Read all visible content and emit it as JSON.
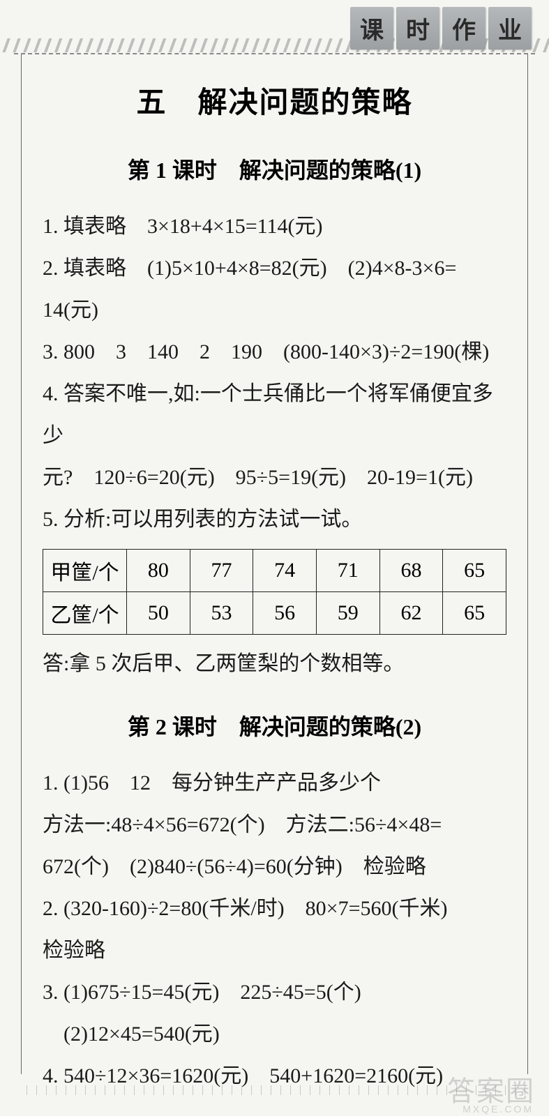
{
  "header": {
    "tabs": [
      "课",
      "时",
      "作",
      "业"
    ]
  },
  "main_title": "五　解决问题的策略",
  "lesson1": {
    "title": "第 1 课时　解决问题的策略(1)",
    "lines": [
      "1. 填表略　3×18+4×15=114(元)",
      "2. 填表略　(1)5×10+4×8=82(元)　(2)4×8-3×6=",
      "14(元)",
      "3. 800　3　140　2　190　(800-140×3)÷2=190(棵)",
      "4. 答案不唯一,如:一个士兵俑比一个将军俑便宜多少",
      "元?　120÷6=20(元)　95÷5=19(元)　20-19=1(元)",
      "5. 分析:可以用列表的方法试一试。"
    ],
    "table": {
      "columns": [
        "甲筐/个",
        "乙筐/个"
      ],
      "row1": [
        "80",
        "77",
        "74",
        "71",
        "68",
        "65"
      ],
      "row2": [
        "50",
        "53",
        "56",
        "59",
        "62",
        "65"
      ],
      "col_count": 7,
      "first_col_width": 120,
      "border_color": "#222222"
    },
    "answer": "答:拿 5 次后甲、乙两筐梨的个数相等。"
  },
  "lesson2": {
    "title": "第 2 课时　解决问题的策略(2)",
    "lines": [
      "1. (1)56　12　每分钟生产产品多少个",
      "方法一:48÷4×56=672(个)　方法二:56÷4×48=",
      "672(个)　(2)840÷(56÷4)=60(分钟)　检验略",
      "2. (320-160)÷2=80(千米/时)　80×7=560(千米)",
      "检验略",
      "3. (1)675÷15=45(元)　225÷45=5(个)",
      "　(2)12×45=540(元)",
      "4. 540÷12×36=1620(元)　540+1620=2160(元)"
    ]
  },
  "watermark": {
    "main": "答案圈",
    "sub": "MXQE.COM"
  },
  "colors": {
    "background": "#f5f5f2",
    "text": "#1a1a1a",
    "border": "#666666",
    "tab_bg": "#9ca0a2",
    "table_border": "#222222"
  },
  "typography": {
    "main_title_size": 42,
    "lesson_title_size": 32,
    "body_size": 30,
    "line_height": 2.0
  }
}
